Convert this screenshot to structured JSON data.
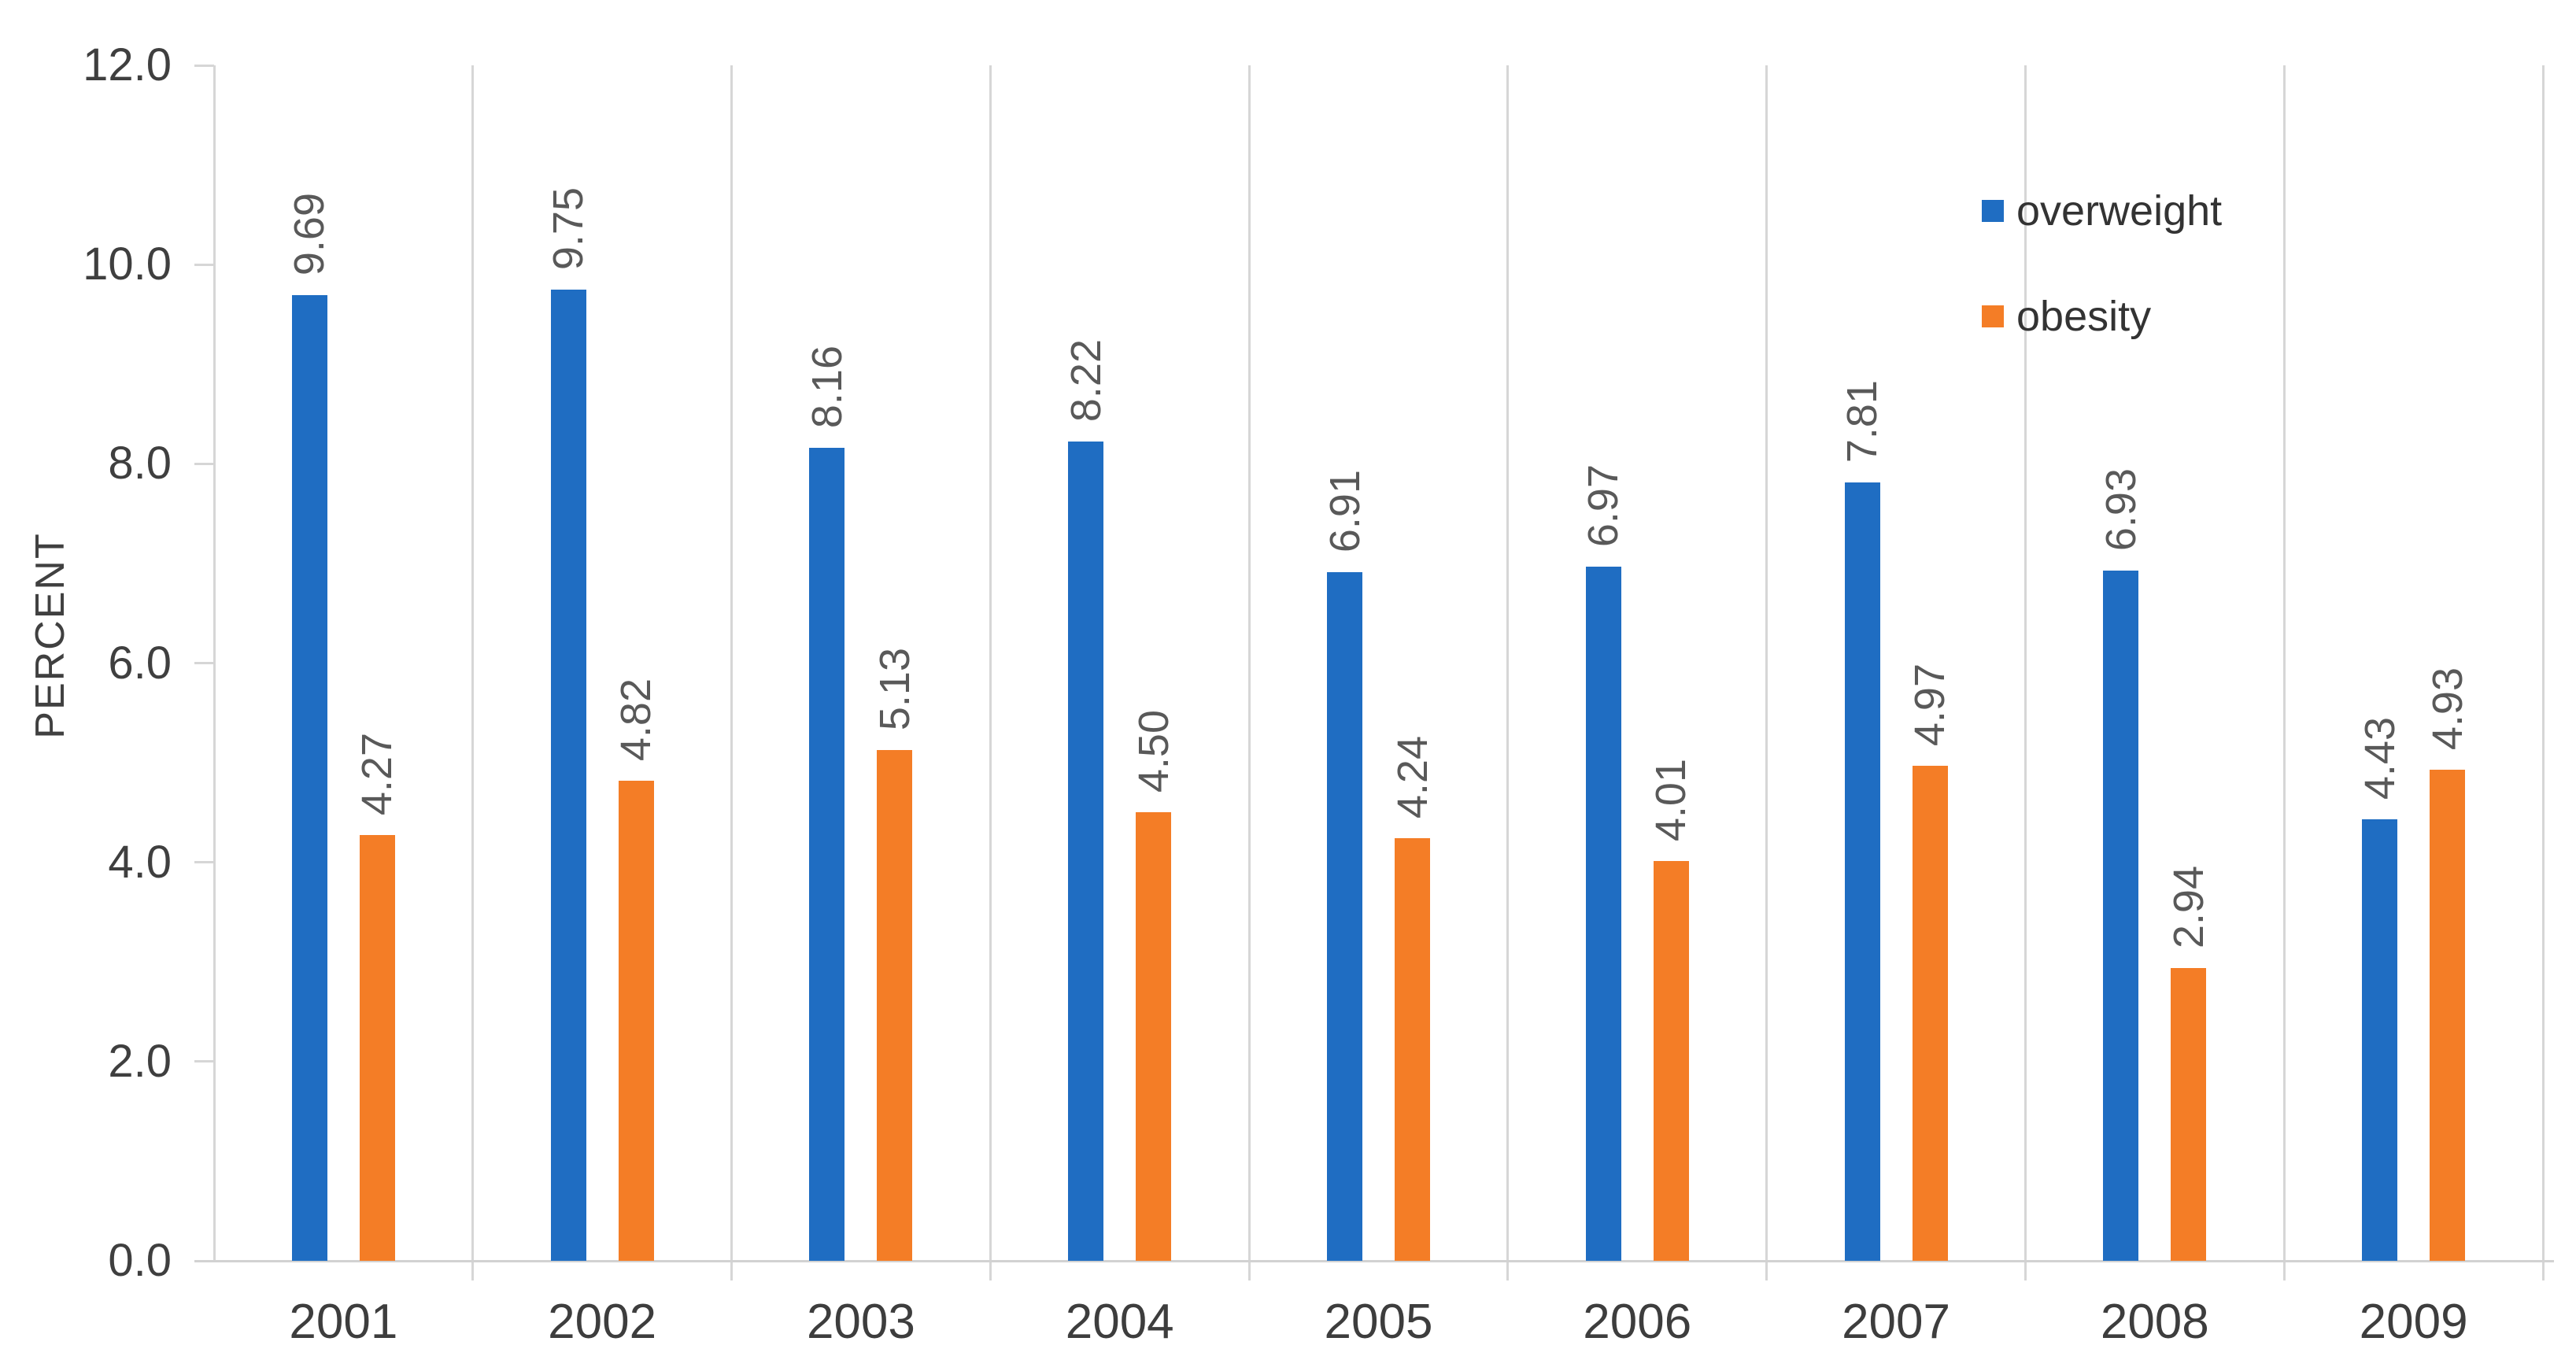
{
  "chart_data": {
    "type": "bar",
    "title": "",
    "categories": [
      "2001",
      "2002",
      "2003",
      "2004",
      "2005",
      "2006",
      "2007",
      "2008",
      "2009"
    ],
    "series": [
      {
        "name": "overweight",
        "color": "#1f6dc2",
        "values": [
          9.69,
          9.75,
          8.16,
          8.22,
          6.91,
          6.97,
          7.81,
          6.93,
          4.43
        ],
        "labels": [
          "9.69",
          "9.75",
          "8.16",
          "8.22",
          "6.91",
          "6.97",
          "7.81",
          "6.93",
          "4.43"
        ]
      },
      {
        "name": "obesity",
        "color": "#f47d26",
        "values": [
          4.27,
          4.82,
          5.13,
          4.5,
          4.24,
          4.01,
          4.97,
          2.94,
          4.93
        ],
        "labels": [
          "4.27",
          "4.82",
          "5.13",
          "4.50",
          "4.24",
          "4.01",
          "4.97",
          "2.94",
          "4.93"
        ]
      }
    ],
    "xlabel": "",
    "ylabel": "PERCENT",
    "ylim": [
      0,
      12
    ],
    "ytick_step": 2,
    "ytick_labels": [
      "0.0",
      "2.0",
      "4.0",
      "6.0",
      "8.0",
      "10.0",
      "12.0"
    ],
    "data_labels": "shown above each bar, rotated 90 degrees reading bottom-to-top",
    "grid": "vertical category separator lines only",
    "legend_position": "inside plot, top-right",
    "colors": {
      "gridline": "#d6d6d6",
      "axis_line": "#d2d2d2",
      "tick_label": "#3f3f3f",
      "data_label": "#595959",
      "legend_text": "#333333",
      "background": "#ffffff"
    }
  }
}
